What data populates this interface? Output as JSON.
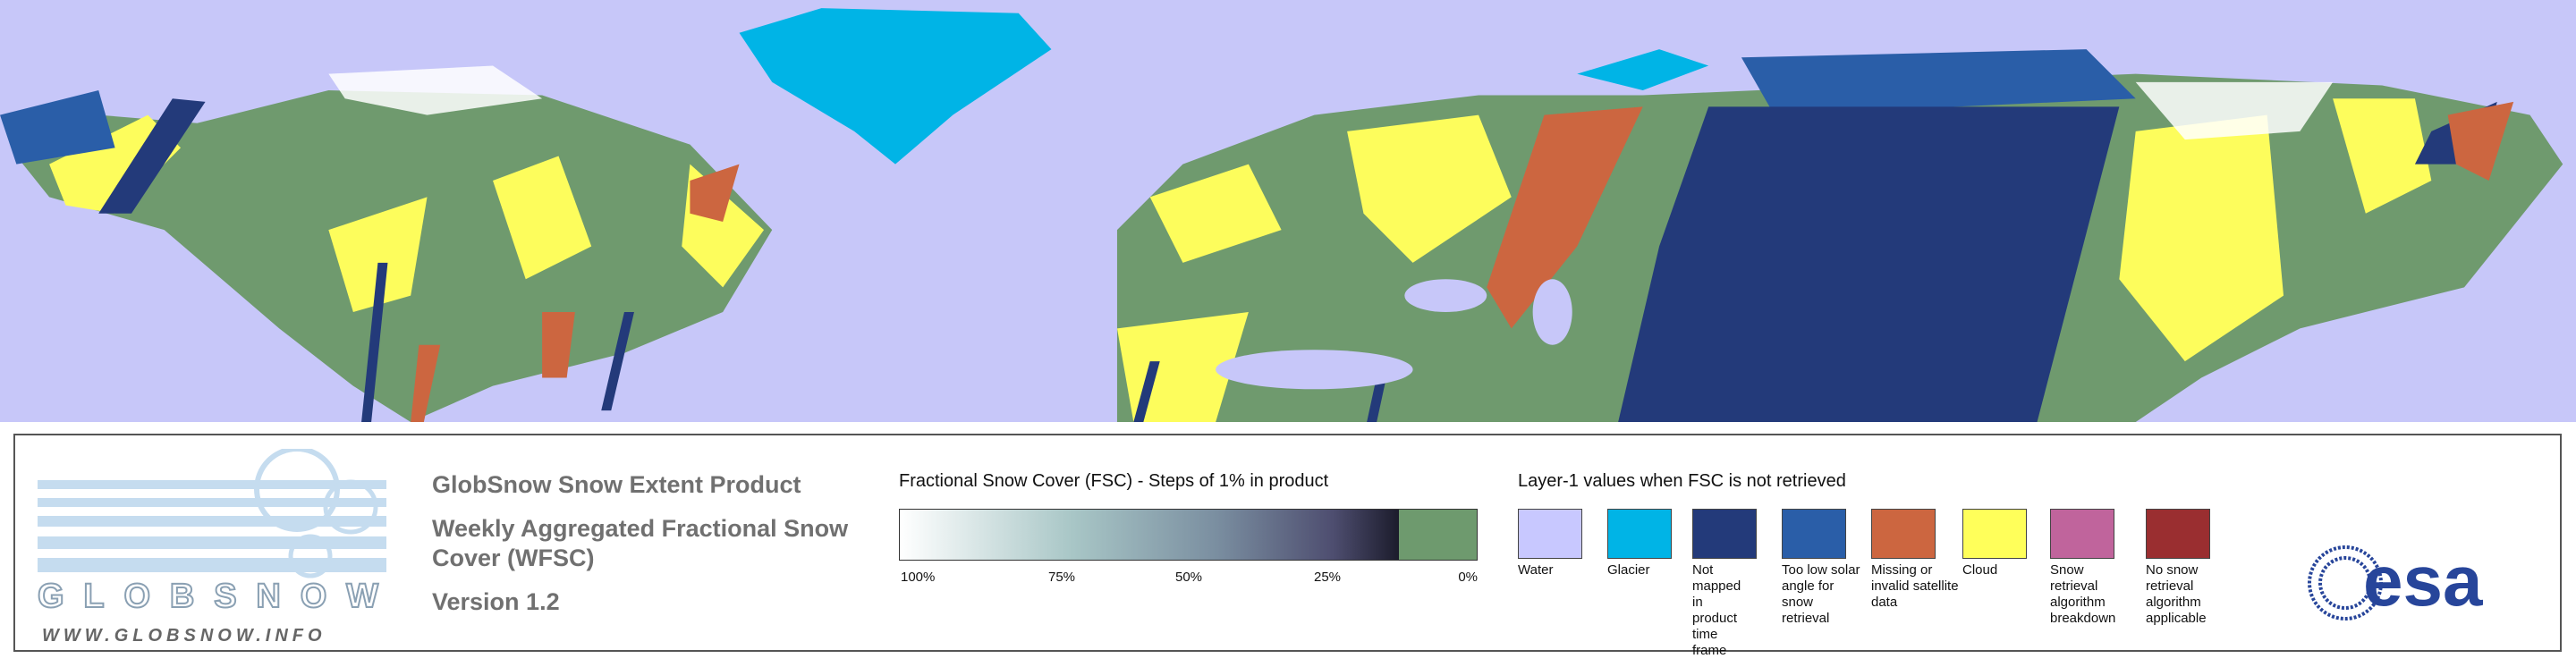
{
  "logo": {
    "name": "GLOBSNOW",
    "url": "WWW.GLOBSNOW.INFO"
  },
  "product": {
    "title": "GlobSnow Snow Extent Product",
    "subtitle": "Weekly Aggregated Fractional Snow Cover (WFSC)",
    "version": "Version 1.2"
  },
  "fsc_legend": {
    "title": "Fractional Snow Cover (FSC) - Steps of 1% in product",
    "ticks": [
      "100%",
      "75%",
      "50%",
      "25%",
      "0%"
    ]
  },
  "layer1_legend": {
    "title": "Layer-1 values when FSC is not retrieved",
    "items": [
      {
        "label": "Water",
        "color": "#c8c8ff"
      },
      {
        "label": "Glacier",
        "color": "#00b4e6"
      },
      {
        "label": "Not mapped in product time frame",
        "color": "#233a7a"
      },
      {
        "label": "Too low solar angle for snow retrieval",
        "color": "#2a5ea8"
      },
      {
        "label": "Missing or invalid satellite data",
        "color": "#cc6640"
      },
      {
        "label": "Cloud",
        "color": "#ffff5a"
      },
      {
        "label": "Snow retrieval algorithm breakdown",
        "color": "#c0649c"
      },
      {
        "label": "No snow retrieval algorithm applicable",
        "color": "#9a2e30"
      }
    ]
  },
  "agency_logo": "esa"
}
